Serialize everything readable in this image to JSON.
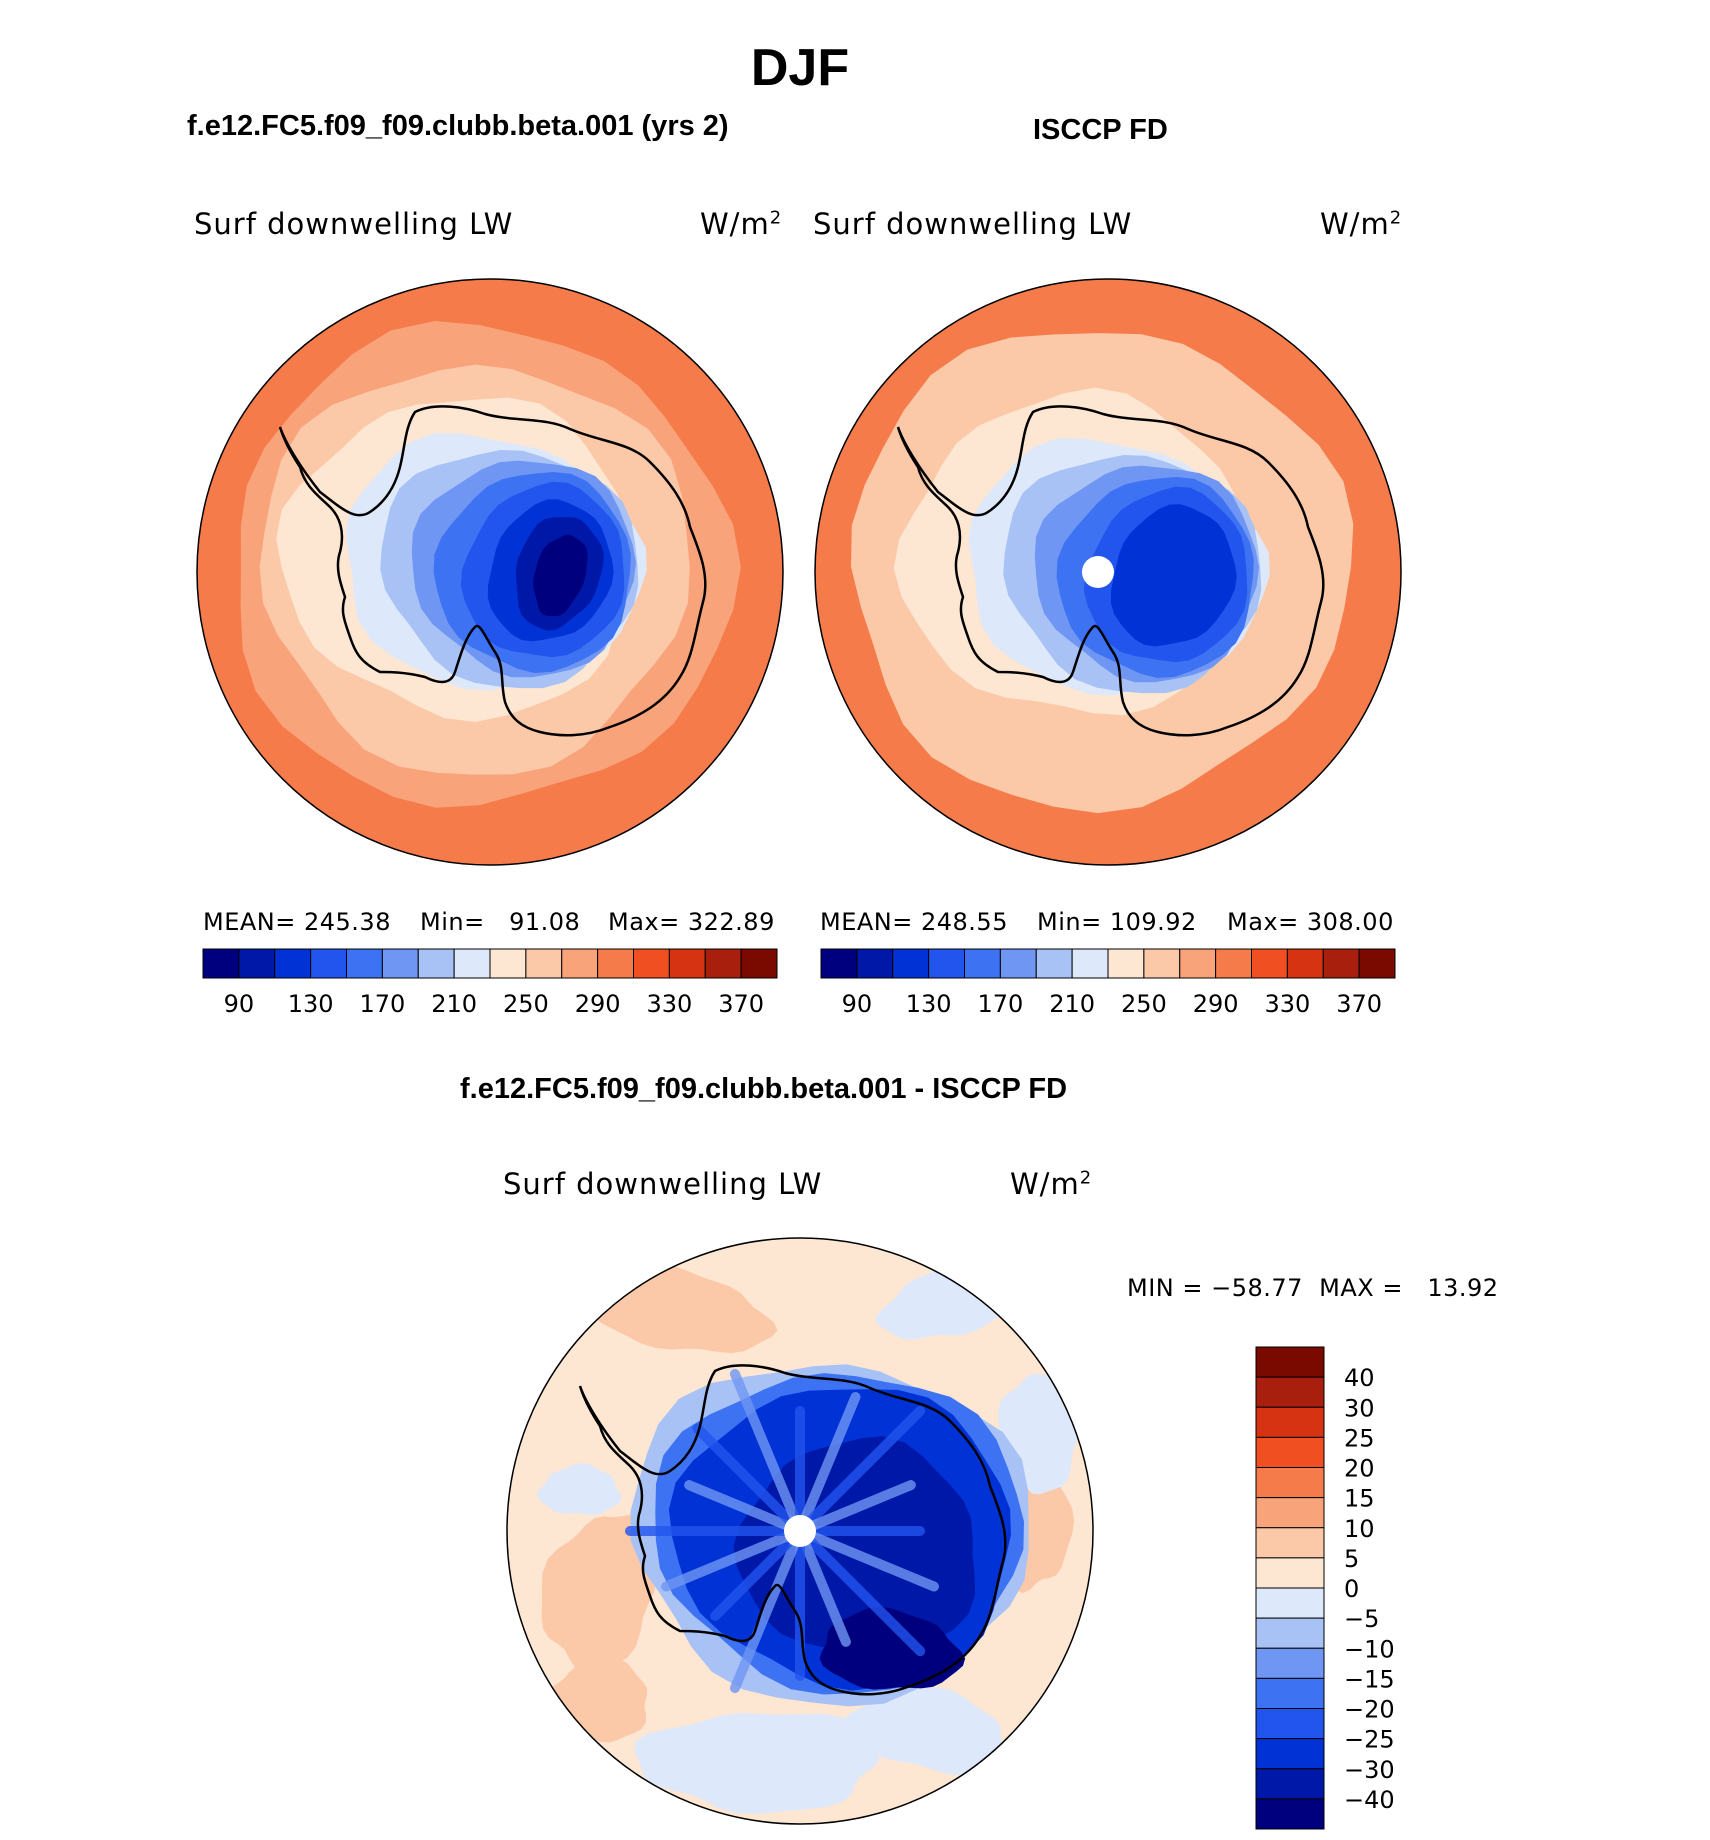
{
  "page_title": "DJF",
  "panels": [
    {
      "title": "f.e12.FC5.f09_f09.clubb.beta.001 (yrs 2)",
      "left_label": "Surf downwelling LW",
      "units": "W/m",
      "units_sup": "2",
      "stats": {
        "mean": "MEAN= 245.38",
        "min": "Min=   91.08",
        "max": "Max= 322.89"
      }
    },
    {
      "title": "ISCCP FD",
      "left_label": "Surf downwelling LW",
      "units": "W/m",
      "units_sup": "2",
      "stats": {
        "mean": "MEAN= 248.55",
        "min": "Min= 109.92",
        "max": "Max= 308.00"
      }
    },
    {
      "title": "f.e12.FC5.f09_f09.clubb.beta.001 - ISCCP FD",
      "left_label": "Surf downwelling LW",
      "units": "W/m",
      "units_sup": "2",
      "minmax": "MIN = −58.77  MAX =   13.92"
    }
  ],
  "chart_data": [
    {
      "type": "heatmap",
      "title": "f.e12.FC5.f09_f09.clubb.beta.001 (yrs 2)",
      "projection": "south polar stereographic",
      "field": "Surf downwelling LW",
      "units": "W/m2",
      "mean": 245.38,
      "min": 91.08,
      "max": 322.89,
      "colorbar": {
        "orientation": "horizontal",
        "tick_labels": [
          "90",
          "130",
          "170",
          "210",
          "250",
          "290",
          "330",
          "370"
        ],
        "levels": [
          90,
          110,
          130,
          150,
          170,
          190,
          210,
          230,
          250,
          270,
          290,
          310,
          330,
          350,
          370
        ],
        "colors": [
          "#00007f",
          "#0018a8",
          "#0032d6",
          "#2255ee",
          "#3d72f2",
          "#6f96f3",
          "#a9c2f6",
          "#dde8fa",
          "#fde6d2",
          "#fbc8a8",
          "#f9a37b",
          "#f57b4a",
          "#f04f22",
          "#d63312",
          "#a81f0e",
          "#7a0a00"
        ]
      }
    },
    {
      "type": "heatmap",
      "title": "ISCCP FD",
      "projection": "south polar stereographic",
      "field": "Surf downwelling LW",
      "units": "W/m2",
      "mean": 248.55,
      "min": 109.92,
      "max": 308.0,
      "colorbar": {
        "orientation": "horizontal",
        "tick_labels": [
          "90",
          "130",
          "170",
          "210",
          "250",
          "290",
          "330",
          "370"
        ],
        "levels": [
          90,
          110,
          130,
          150,
          170,
          190,
          210,
          230,
          250,
          270,
          290,
          310,
          330,
          350,
          370
        ],
        "colors": [
          "#00007f",
          "#0018a8",
          "#0032d6",
          "#2255ee",
          "#3d72f2",
          "#6f96f3",
          "#a9c2f6",
          "#dde8fa",
          "#fde6d2",
          "#fbc8a8",
          "#f9a37b",
          "#f57b4a",
          "#f04f22",
          "#d63312",
          "#a81f0e",
          "#7a0a00"
        ]
      }
    },
    {
      "type": "heatmap",
      "title": "f.e12.FC5.f09_f09.clubb.beta.001 - ISCCP FD",
      "projection": "south polar stereographic",
      "field": "Surf downwelling LW",
      "units": "W/m2",
      "min": -58.77,
      "max": 13.92,
      "colorbar": {
        "orientation": "vertical",
        "tick_labels": [
          "40",
          "30",
          "25",
          "20",
          "15",
          "10",
          "5",
          "0",
          "−5",
          "−10",
          "−15",
          "−20",
          "−25",
          "−30",
          "−40"
        ],
        "levels": [
          40,
          30,
          25,
          20,
          15,
          10,
          5,
          0,
          -5,
          -10,
          -15,
          -20,
          -25,
          -30,
          -40
        ],
        "colors": [
          "#7a0a00",
          "#a81f0e",
          "#d63312",
          "#f04f22",
          "#f57b4a",
          "#f9a37b",
          "#fbc8a8",
          "#fde6d2",
          "#dde8fa",
          "#a9c2f6",
          "#6f96f3",
          "#3d72f2",
          "#2255ee",
          "#0032d6",
          "#0018a8",
          "#00007f"
        ]
      }
    }
  ]
}
